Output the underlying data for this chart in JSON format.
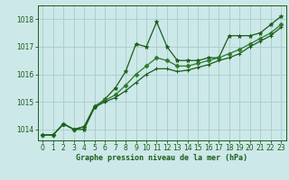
{
  "xlabel_label": "Graphe pression niveau de la mer (hPa)",
  "background_color": "#cce8e8",
  "grid_color": "#aacccc",
  "line_color1": "#1a5c1a",
  "line_color2": "#2d7a2d",
  "line_color3": "#1a5c1a",
  "xlim": [
    -0.5,
    23.5
  ],
  "ylim": [
    1013.6,
    1018.5
  ],
  "yticks": [
    1014,
    1015,
    1016,
    1017,
    1018
  ],
  "xticks": [
    0,
    1,
    2,
    3,
    4,
    5,
    6,
    7,
    8,
    9,
    10,
    11,
    12,
    13,
    14,
    15,
    16,
    17,
    18,
    19,
    20,
    21,
    22,
    23
  ],
  "series1_x": [
    0,
    1,
    2,
    3,
    4,
    5,
    6,
    7,
    8,
    9,
    10,
    11,
    12,
    13,
    14,
    15,
    16,
    17,
    18,
    19,
    20,
    21,
    22,
    23
  ],
  "series1_y": [
    1013.8,
    1013.8,
    1014.2,
    1014.0,
    1014.0,
    1014.8,
    1015.1,
    1015.5,
    1016.1,
    1017.1,
    1017.0,
    1017.9,
    1017.0,
    1016.5,
    1016.5,
    1016.5,
    1016.6,
    1016.6,
    1017.4,
    1017.4,
    1017.4,
    1017.5,
    1017.8,
    1018.1
  ],
  "series2_x": [
    0,
    1,
    2,
    3,
    4,
    5,
    6,
    7,
    8,
    9,
    10,
    11,
    12,
    13,
    14,
    15,
    16,
    17,
    18,
    19,
    20,
    21,
    22,
    23
  ],
  "series2_y": [
    1013.8,
    1013.8,
    1014.2,
    1014.0,
    1014.1,
    1014.85,
    1015.05,
    1015.25,
    1015.6,
    1016.0,
    1016.3,
    1016.6,
    1016.5,
    1016.3,
    1016.3,
    1016.4,
    1016.5,
    1016.6,
    1016.75,
    1016.9,
    1017.1,
    1017.3,
    1017.5,
    1017.8
  ],
  "series3_x": [
    0,
    1,
    2,
    3,
    4,
    5,
    6,
    7,
    8,
    9,
    10,
    11,
    12,
    13,
    14,
    15,
    16,
    17,
    18,
    19,
    20,
    21,
    22,
    23
  ],
  "series3_y": [
    1013.8,
    1013.8,
    1014.2,
    1014.0,
    1014.1,
    1014.8,
    1015.0,
    1015.15,
    1015.4,
    1015.7,
    1016.0,
    1016.2,
    1016.2,
    1016.1,
    1016.15,
    1016.25,
    1016.35,
    1016.5,
    1016.6,
    1016.75,
    1017.0,
    1017.2,
    1017.4,
    1017.7
  ],
  "tick_fontsize": 5.5,
  "xlabel_fontsize": 6.0,
  "linewidth": 0.9,
  "markersize1": 3.5,
  "markersize2": 2.5,
  "markersize3": 3.0
}
